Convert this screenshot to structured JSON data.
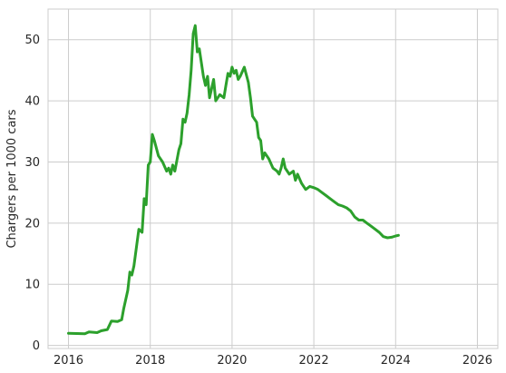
{
  "chart_data": {
    "type": "line",
    "title": "",
    "xlabel": "",
    "ylabel": "Chargers per 1000 cars",
    "xlim": [
      2015.5,
      2026.5
    ],
    "ylim": [
      -0.5,
      55
    ],
    "xticks": [
      2016,
      2018,
      2020,
      2022,
      2024,
      2026
    ],
    "xtick_labels": [
      "2016",
      "2018",
      "2020",
      "2022",
      "2024",
      "2026"
    ],
    "yticks": [
      0,
      10,
      20,
      30,
      40,
      50
    ],
    "ytick_labels": [
      "0",
      "10",
      "20",
      "30",
      "40",
      "50"
    ],
    "grid": true,
    "legend": "none",
    "colors": {
      "line": "#2ca02c",
      "grid": "#cccccc",
      "text": "#262626"
    },
    "series": [
      {
        "x": [
          2016.0,
          2016.4,
          2016.5,
          2016.7,
          2016.8,
          2016.95,
          2017.05,
          2017.2,
          2017.3,
          2017.35,
          2017.45,
          2017.5,
          2017.55,
          2017.6,
          2017.7,
          2017.72,
          2017.8,
          2017.85,
          2017.9,
          2017.95,
          2018.0,
          2018.05,
          2018.1,
          2018.2,
          2018.3,
          2018.4,
          2018.45,
          2018.5,
          2018.55,
          2018.6,
          2018.7,
          2018.75,
          2018.8,
          2018.85,
          2018.9,
          2018.95,
          2019.0,
          2019.05,
          2019.1,
          2019.15,
          2019.2,
          2019.3,
          2019.35,
          2019.4,
          2019.45,
          2019.5,
          2019.55,
          2019.6,
          2019.7,
          2019.8,
          2019.85,
          2019.9,
          2019.95,
          2020.0,
          2020.05,
          2020.1,
          2020.15,
          2020.2,
          2020.3,
          2020.4,
          2020.45,
          2020.5,
          2020.55,
          2020.6,
          2020.65,
          2020.7,
          2020.75,
          2020.8,
          2020.9,
          2021.0,
          2021.1,
          2021.15,
          2021.2,
          2021.25,
          2021.3,
          2021.35,
          2021.4,
          2021.5,
          2021.55,
          2021.6,
          2021.7,
          2021.8,
          2021.9,
          2022.0,
          2022.1,
          2022.2,
          2022.3,
          2022.4,
          2022.5,
          2022.6,
          2022.7,
          2022.8,
          2022.9,
          2023.0,
          2023.1,
          2023.2,
          2023.3,
          2023.4,
          2023.5,
          2023.6,
          2023.7,
          2023.8,
          2023.9,
          2024.0,
          2024.07
        ],
        "values": [
          2.0,
          1.9,
          2.2,
          2.1,
          2.4,
          2.6,
          4.0,
          3.9,
          4.2,
          6.0,
          9.0,
          12.0,
          11.5,
          13.0,
          18.0,
          19.0,
          18.5,
          24.0,
          23.0,
          29.5,
          30.0,
          34.5,
          33.5,
          31.0,
          30.0,
          28.5,
          29.0,
          28.0,
          29.5,
          28.5,
          32.0,
          33.0,
          37.0,
          36.5,
          38.0,
          41.0,
          45.0,
          51.0,
          52.3,
          48.0,
          48.5,
          44.0,
          42.5,
          44.0,
          40.5,
          42.0,
          43.5,
          40.0,
          41.0,
          40.5,
          42.5,
          44.5,
          44.0,
          45.5,
          44.5,
          45.0,
          43.5,
          44.0,
          45.5,
          43.0,
          40.5,
          37.5,
          37.0,
          36.5,
          34.0,
          33.5,
          30.5,
          31.5,
          30.5,
          29.0,
          28.5,
          28.0,
          29.0,
          30.5,
          29.0,
          28.5,
          28.0,
          28.5,
          27.0,
          28.0,
          26.5,
          25.5,
          26.0,
          25.8,
          25.5,
          25.0,
          24.5,
          24.0,
          23.5,
          23.0,
          22.8,
          22.5,
          22.0,
          21.0,
          20.5,
          20.5,
          20.0,
          19.5,
          19.0,
          18.5,
          17.8,
          17.6,
          17.7,
          17.9,
          18.0
        ]
      }
    ]
  }
}
